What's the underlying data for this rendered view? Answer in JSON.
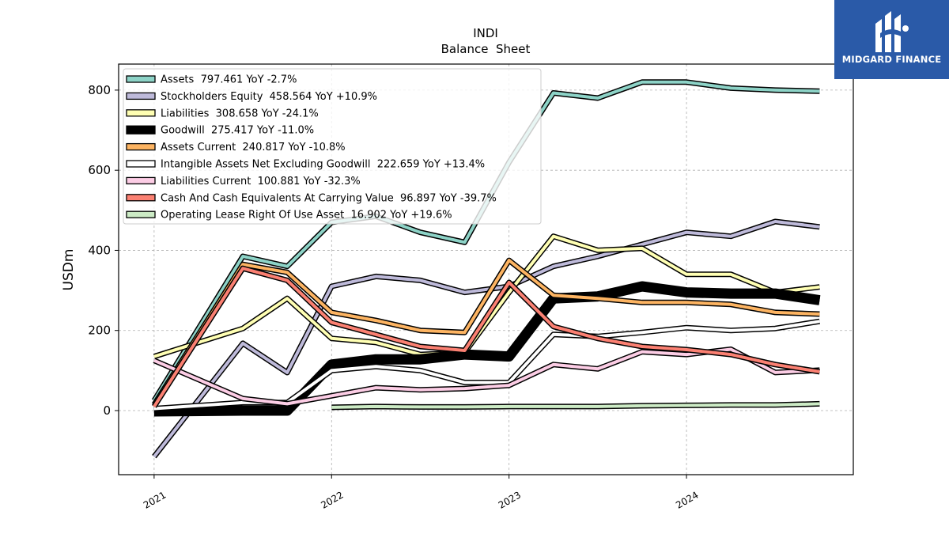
{
  "chart_data": {
    "type": "line",
    "title": "INDI",
    "subtitle": "Balance  Sheet",
    "ylabel": "USDm",
    "xlim": [
      2020.8,
      2024.94
    ],
    "ylim": [
      -160,
      865
    ],
    "yticks": [
      0,
      200,
      400,
      600,
      800
    ],
    "xticks": [
      {
        "value": 2021.0,
        "label": "2021"
      },
      {
        "value": 2022.0,
        "label": "2022"
      },
      {
        "value": 2023.0,
        "label": "2023"
      },
      {
        "value": 2024.0,
        "label": "2024"
      }
    ],
    "grid": true,
    "legend_position": "top-left",
    "series": [
      {
        "name": "Assets",
        "legend": "Assets  797.461 YoY -2.7%",
        "color": "#8dd3c7",
        "width": 4,
        "x": [
          2021.0,
          2021.5,
          2021.75,
          2022.0,
          2022.25,
          2022.5,
          2022.75,
          2023.0,
          2023.25,
          2023.5,
          2023.75,
          2024.0,
          2024.25,
          2024.5,
          2024.75
        ],
        "y": [
          25,
          385,
          360,
          470,
          485,
          445,
          420,
          620,
          793,
          780,
          820,
          820,
          805,
          800,
          797.461
        ]
      },
      {
        "name": "Stockholders Equity",
        "legend": "Stockholders Equity  458.564 YoY +10.9%",
        "color": "#bebada",
        "width": 4,
        "x": [
          2021.0,
          2021.5,
          2021.75,
          2022.0,
          2022.25,
          2022.5,
          2022.75,
          2023.0,
          2023.25,
          2023.5,
          2023.75,
          2024.0,
          2024.25,
          2024.5,
          2024.75
        ],
        "y": [
          -115,
          168,
          95,
          310,
          335,
          325,
          295,
          310,
          360,
          385,
          415,
          445,
          435,
          472,
          458.564
        ]
      },
      {
        "name": "Liabilities",
        "legend": "Liabilities  308.658 YoY -24.1%",
        "color": "#ffffb3",
        "width": 4,
        "x": [
          2021.0,
          2021.5,
          2021.75,
          2022.0,
          2022.25,
          2022.5,
          2022.75,
          2023.0,
          2023.25,
          2023.5,
          2023.75,
          2024.0,
          2024.25,
          2024.5,
          2024.75
        ],
        "y": [
          135,
          205,
          280,
          180,
          170,
          140,
          145,
          295,
          435,
          400,
          405,
          340,
          340,
          295,
          308.658
        ]
      },
      {
        "name": "Goodwill",
        "legend": "Goodwill  275.417 YoY -11.0%",
        "color": "#000000",
        "width": 10,
        "x": [
          2021.0,
          2021.5,
          2021.75,
          2022.0,
          2022.25,
          2022.5,
          2022.75,
          2023.0,
          2023.25,
          2023.5,
          2023.75,
          2024.0,
          2024.25,
          2024.5,
          2024.75
        ],
        "y": [
          -2,
          0,
          0,
          115,
          128,
          128,
          140,
          135,
          280,
          285,
          310,
          295,
          292,
          292,
          275.417
        ]
      },
      {
        "name": "Assets Current",
        "legend": "Assets Current  240.817 YoY -10.8%",
        "color": "#fdb462",
        "width": 4,
        "x": [
          2021.0,
          2021.5,
          2021.75,
          2022.0,
          2022.25,
          2022.5,
          2022.75,
          2023.0,
          2023.25,
          2023.5,
          2023.75,
          2024.0,
          2024.25,
          2024.5,
          2024.75
        ],
        "y": [
          15,
          365,
          345,
          245,
          225,
          200,
          195,
          375,
          288,
          280,
          270,
          270,
          265,
          245,
          240.817
        ]
      },
      {
        "name": "Intangible Assets Net Excluding Goodwill",
        "legend": "Intangible Assets Net Excluding Goodwill  222.659 YoY +13.4%",
        "color": "#ffffff",
        "width": 4,
        "x": [
          2021.0,
          2021.5,
          2021.75,
          2022.0,
          2022.25,
          2022.5,
          2022.75,
          2023.0,
          2023.25,
          2023.5,
          2023.75,
          2024.0,
          2024.25,
          2024.5,
          2024.75
        ],
        "y": [
          5,
          20,
          20,
          100,
          110,
          100,
          70,
          70,
          190,
          185,
          195,
          207,
          200,
          205,
          222.659
        ]
      },
      {
        "name": "Liabilities Current",
        "legend": "Liabilities Current  100.881 YoY -32.3%",
        "color": "#fccde5",
        "width": 4,
        "x": [
          2021.0,
          2021.5,
          2021.75,
          2022.0,
          2022.25,
          2022.5,
          2022.75,
          2023.0,
          2023.25,
          2023.5,
          2023.75,
          2024.0,
          2024.25,
          2024.5,
          2024.75
        ],
        "y": [
          125,
          30,
          17,
          37,
          57,
          52,
          55,
          63,
          115,
          104,
          147,
          140,
          153,
          95,
          100.881
        ]
      },
      {
        "name": "Cash And Cash Equivalents At Carrying Value",
        "legend": "Cash And Cash Equivalents At Carrying Value  96.897 YoY -39.7%",
        "color": "#fb8072",
        "width": 4,
        "x": [
          2021.0,
          2021.5,
          2021.75,
          2022.0,
          2022.25,
          2022.5,
          2022.75,
          2023.0,
          2023.25,
          2023.5,
          2023.75,
          2024.0,
          2024.25,
          2024.5,
          2024.75
        ],
        "y": [
          10,
          355,
          325,
          220,
          190,
          160,
          150,
          320,
          210,
          180,
          160,
          152,
          140,
          115,
          96.897
        ]
      },
      {
        "name": "Operating Lease Right Of Use Asset",
        "legend": "Operating Lease Right Of Use Asset  16.902 YoY +19.6%",
        "color": "#ccebc5",
        "width": 4,
        "x": [
          2022.0,
          2022.25,
          2022.5,
          2022.75,
          2023.0,
          2023.25,
          2023.5,
          2023.75,
          2024.0,
          2024.25,
          2024.5,
          2024.75
        ],
        "y": [
          8,
          10,
          9,
          9,
          10,
          10,
          10,
          12,
          13,
          14,
          14,
          16.902
        ]
      }
    ]
  },
  "brand": {
    "name": "MIDGARD FINANCE",
    "color": "#2a5aa8"
  }
}
